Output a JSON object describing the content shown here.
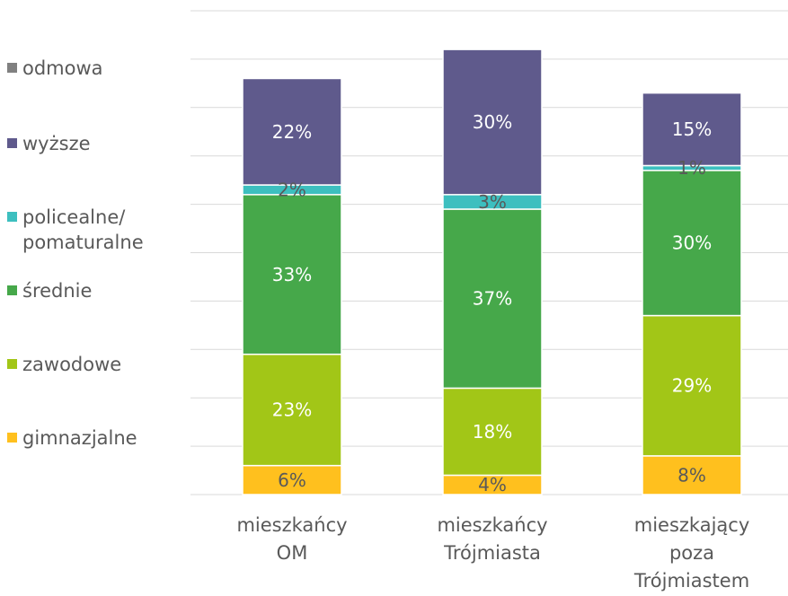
{
  "chart_data": {
    "type": "bar",
    "stacked": true,
    "categories": [
      "mieszkańcy OM",
      "mieszkańcy Trójmiasta",
      "mieszkający poza Trójmiastem"
    ],
    "categories_lines": [
      [
        "mieszkańcy",
        "OM"
      ],
      [
        "mieszkańcy",
        "Trójmiasta"
      ],
      [
        "mieszkający",
        "poza",
        "Trójmiastem"
      ]
    ],
    "series": [
      {
        "name": "gimnazjalne",
        "color": "#FFC01E",
        "label_color": "#595959",
        "values": [
          6,
          4,
          8
        ]
      },
      {
        "name": "zawodowe",
        "color": "#A2C617",
        "label_color": "#ffffff",
        "values": [
          23,
          18,
          29
        ]
      },
      {
        "name": "średnie",
        "color": "#46A84A",
        "label_color": "#ffffff",
        "values": [
          33,
          37,
          30
        ]
      },
      {
        "name": "policealne/ pomaturalne",
        "color": "#3DBFBF",
        "label_color": "#595959",
        "values": [
          2,
          3,
          1
        ]
      },
      {
        "name": "wyższe",
        "color": "#5F5A8C",
        "label_color": "#ffffff",
        "values": [
          22,
          30,
          15
        ]
      },
      {
        "name": "odmowa",
        "color": "#808080",
        "label_color": "#595959",
        "values": [
          0,
          0,
          0
        ]
      }
    ],
    "data_labels": [
      [
        "6%",
        "23%",
        "33%",
        "2%",
        "22%"
      ],
      [
        "4%",
        "18%",
        "37%",
        "3%",
        "30%"
      ],
      [
        "8%",
        "29%",
        "30%",
        "1%",
        "15%"
      ]
    ],
    "legend_order": [
      "odmowa",
      "wyższe",
      "policealne/ pomaturalne",
      "średnie",
      "zawodowe",
      "gimnazjalne"
    ],
    "legend_lines": {
      "policealne/ pomaturalne": [
        "policealne/",
        "pomaturalne"
      ]
    },
    "legend_position": "left",
    "grid": true,
    "title": "",
    "xlabel": "",
    "ylabel": ""
  }
}
